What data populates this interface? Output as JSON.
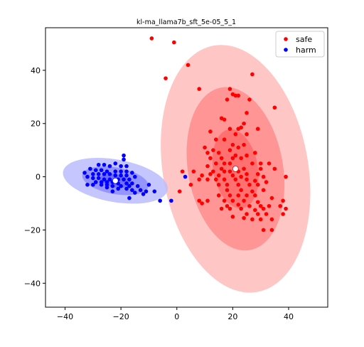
{
  "chart_data": {
    "type": "scatter",
    "title": "kl-ma_llama7b_sft_5e-05_5_1",
    "xlabel": "",
    "ylabel": "",
    "xlim": [
      -47,
      54
    ],
    "ylim": [
      -49,
      56
    ],
    "xticks": [
      -40,
      -20,
      0,
      20,
      40
    ],
    "yticks": [
      -40,
      -20,
      0,
      20,
      40
    ],
    "tick_labels": {
      "x": [
        "−40",
        "−20",
        "0",
        "20",
        "40"
      ],
      "y": [
        "−40",
        "−20",
        "0",
        "20",
        "40"
      ]
    },
    "grid": false,
    "legend_position": "top-right",
    "series": [
      {
        "name": "safe",
        "color": "#ff0000",
        "mean": [
          21,
          3
        ],
        "ellipses": [
          {
            "center": [
              21,
              3
            ],
            "width_axis": 52,
            "height_axis": 94,
            "angle_deg": 10,
            "fill": "#ffbcbc"
          },
          {
            "center": [
              21,
              3
            ],
            "width_axis": 34,
            "height_axis": 62,
            "angle_deg": 10,
            "fill": "#ff8c8c"
          },
          {
            "center": [
              21,
              3
            ],
            "width_axis": 16,
            "height_axis": 30,
            "angle_deg": 10,
            "fill": "#ff6a6a"
          }
        ],
        "points": [
          [
            -9,
            52
          ],
          [
            -1,
            50.5
          ],
          [
            4,
            42
          ],
          [
            -4,
            37
          ],
          [
            27,
            38.5
          ],
          [
            8,
            33
          ],
          [
            19,
            33
          ],
          [
            20,
            31
          ],
          [
            21,
            30.5
          ],
          [
            22,
            30.5
          ],
          [
            18,
            29
          ],
          [
            26,
            29
          ],
          [
            35,
            26
          ],
          [
            25,
            24
          ],
          [
            16,
            22
          ],
          [
            17,
            21.5
          ],
          [
            24,
            20
          ],
          [
            19,
            18
          ],
          [
            22,
            18
          ],
          [
            23,
            18.5
          ],
          [
            29,
            18
          ],
          [
            12,
            17
          ],
          [
            21,
            16
          ],
          [
            25,
            16
          ],
          [
            14,
            14
          ],
          [
            17,
            14
          ],
          [
            20,
            12
          ],
          [
            24,
            12
          ],
          [
            10,
            11
          ],
          [
            13,
            10
          ],
          [
            19,
            10
          ],
          [
            22,
            11
          ],
          [
            28,
            9
          ],
          [
            11,
            9
          ],
          [
            15,
            9
          ],
          [
            21,
            8
          ],
          [
            25,
            8
          ],
          [
            12,
            7
          ],
          [
            16,
            7
          ],
          [
            20,
            7
          ],
          [
            23,
            7
          ],
          [
            27,
            5
          ],
          [
            30,
            5
          ],
          [
            14,
            5
          ],
          [
            17,
            5
          ],
          [
            19,
            5
          ],
          [
            33,
            5
          ],
          [
            30,
            3
          ],
          [
            11,
            4
          ],
          [
            16,
            3
          ],
          [
            21,
            3
          ],
          [
            24,
            3
          ],
          [
            35,
            3
          ],
          [
            2,
            2
          ],
          [
            6,
            2
          ],
          [
            13,
            2
          ],
          [
            17,
            2
          ],
          [
            19,
            2
          ],
          [
            22,
            2
          ],
          [
            25,
            1
          ],
          [
            29,
            1
          ],
          [
            9,
            0.5
          ],
          [
            12,
            1
          ],
          [
            15,
            0.5
          ],
          [
            20,
            0.5
          ],
          [
            23,
            0
          ],
          [
            31,
            0
          ],
          [
            39,
            0
          ],
          [
            8,
            -1
          ],
          [
            11,
            -1
          ],
          [
            14,
            -1
          ],
          [
            17,
            -1
          ],
          [
            21,
            -1
          ],
          [
            25,
            -1
          ],
          [
            28,
            -1.5
          ],
          [
            32,
            -2
          ],
          [
            5,
            -3
          ],
          [
            15,
            -3
          ],
          [
            18,
            -3
          ],
          [
            22,
            -3
          ],
          [
            26,
            -3
          ],
          [
            29,
            -3
          ],
          [
            1,
            -5.5
          ],
          [
            18,
            -5
          ],
          [
            23,
            -5
          ],
          [
            27,
            -5.5
          ],
          [
            31,
            -5
          ],
          [
            15,
            -7
          ],
          [
            19,
            -7
          ],
          [
            22,
            -7
          ],
          [
            25,
            -7
          ],
          [
            28,
            -7
          ],
          [
            34,
            -8
          ],
          [
            8,
            -9
          ],
          [
            11,
            -9
          ],
          [
            17,
            -9
          ],
          [
            20,
            -9
          ],
          [
            24,
            -9
          ],
          [
            29,
            -9.5
          ],
          [
            38,
            -9
          ],
          [
            9,
            -10
          ],
          [
            18,
            -11
          ],
          [
            22,
            -10.5
          ],
          [
            26,
            -11
          ],
          [
            30,
            -11
          ],
          [
            33,
            -11
          ],
          [
            37,
            -11
          ],
          [
            16,
            -12
          ],
          [
            19,
            -12
          ],
          [
            23,
            -12
          ],
          [
            28,
            -12.5
          ],
          [
            31,
            -12
          ],
          [
            39,
            -12
          ],
          [
            25,
            -14
          ],
          [
            29,
            -14
          ],
          [
            32,
            -14
          ],
          [
            38,
            -14
          ],
          [
            20,
            -15
          ],
          [
            24,
            -15.5
          ],
          [
            27,
            -16
          ],
          [
            30,
            -16
          ],
          [
            34,
            -16
          ],
          [
            31,
            -20
          ],
          [
            34,
            -20
          ]
        ]
      },
      {
        "name": "harm",
        "color": "#0000ff",
        "mean": [
          -22,
          -1.5
        ],
        "ellipses": [
          {
            "center": [
              -22,
              -1.5
            ],
            "width_axis": 38,
            "height_axis": 16,
            "angle_deg": -10,
            "fill": "#bcbcff"
          },
          {
            "center": [
              -22,
              -1.5
            ],
            "width_axis": 24,
            "height_axis": 10,
            "angle_deg": -10,
            "fill": "#8c8cff"
          },
          {
            "center": [
              -22,
              -1.5
            ],
            "width_axis": 11,
            "height_axis": 5,
            "angle_deg": -10,
            "fill": "#6a6aff"
          }
        ],
        "points": [
          [
            -19,
            8
          ],
          [
            -19,
            6.5
          ],
          [
            -22,
            5
          ],
          [
            -28,
            4.5
          ],
          [
            -26,
            4.5
          ],
          [
            -24,
            4
          ],
          [
            -20,
            4
          ],
          [
            -18,
            4
          ],
          [
            -31,
            3
          ],
          [
            -29,
            2.5
          ],
          [
            -27,
            2.5
          ],
          [
            -25,
            2
          ],
          [
            -22,
            2
          ],
          [
            -20,
            2
          ],
          [
            -18,
            2
          ],
          [
            -16,
            1.5
          ],
          [
            -33,
            1.5
          ],
          [
            -30,
            1
          ],
          [
            -28,
            1
          ],
          [
            -26,
            1
          ],
          [
            -24,
            1
          ],
          [
            -22,
            0.5
          ],
          [
            -20,
            0.5
          ],
          [
            -18,
            0.5
          ],
          [
            -15,
            0
          ],
          [
            -32,
            0
          ],
          [
            -30,
            -0.5
          ],
          [
            -28,
            -0.5
          ],
          [
            -26,
            -1
          ],
          [
            -24,
            -1
          ],
          [
            -21,
            -1
          ],
          [
            -19,
            -1
          ],
          [
            -17,
            -1
          ],
          [
            -29,
            -2
          ],
          [
            -27,
            -2
          ],
          [
            -25,
            -2
          ],
          [
            -23,
            -2
          ],
          [
            -21,
            -2.5
          ],
          [
            -18,
            -2.5
          ],
          [
            -16,
            -2.5
          ],
          [
            -32,
            -3
          ],
          [
            -30,
            -3
          ],
          [
            -27,
            -3
          ],
          [
            -25,
            -3
          ],
          [
            -23,
            -3.5
          ],
          [
            -20,
            -3.5
          ],
          [
            -17,
            -3.5
          ],
          [
            -14,
            -3.5
          ],
          [
            -25,
            -4
          ],
          [
            -21,
            -4.5
          ],
          [
            -18,
            -4.5
          ],
          [
            -16,
            -5
          ],
          [
            -13,
            -5
          ],
          [
            -11,
            -5.5
          ],
          [
            -23,
            -5.5
          ],
          [
            -15,
            -6
          ],
          [
            -12,
            -6.5
          ],
          [
            -8,
            -5.5
          ],
          [
            -10,
            -3
          ],
          [
            -17,
            -8
          ],
          [
            -2,
            -9
          ],
          [
            -6,
            -9
          ]
        ]
      }
    ],
    "extra_points": [
      {
        "series": "harm",
        "point": [
          3,
          0
        ]
      }
    ]
  }
}
